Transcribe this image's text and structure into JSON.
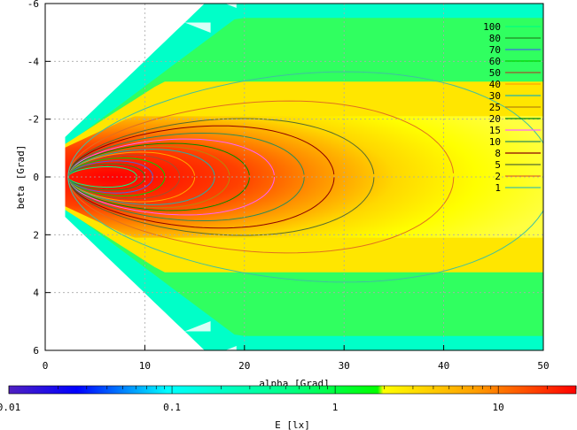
{
  "chart_data": {
    "type": "heatmap",
    "xlabel": "alpha [Grad]",
    "ylabel": "beta [Grad]",
    "xlim": [
      0,
      50
    ],
    "ylim": [
      -6,
      6
    ],
    "y_axis_inverted": true,
    "x_ticks": [
      "0",
      "10",
      "20",
      "30",
      "40",
      "50"
    ],
    "y_ticks": [
      "-6",
      "-4",
      "-2",
      "0",
      "2",
      "4",
      "6"
    ],
    "grid": true,
    "colorbar": {
      "label": "E [lx]",
      "scale": "log",
      "range": [
        0.01,
        30
      ],
      "ticks": [
        "0.01",
        "0.1",
        "1",
        "10"
      ]
    },
    "contour_levels": [
      {
        "level": "100",
        "color": "#00ff7f"
      },
      {
        "level": "80",
        "color": "#228b22"
      },
      {
        "level": "70",
        "color": "#4169e1"
      },
      {
        "level": "60",
        "color": "#00d000"
      },
      {
        "level": "50",
        "color": "#a0522d"
      },
      {
        "level": "40",
        "color": "#ffa500"
      },
      {
        "level": "30",
        "color": "#20b2aa"
      },
      {
        "level": "25",
        "color": "#b8860b"
      },
      {
        "level": "20",
        "color": "#008b00"
      },
      {
        "level": "15",
        "color": "#ff60ff"
      },
      {
        "level": "10",
        "color": "#2e8b57"
      },
      {
        "level": "8",
        "color": "#8b0000"
      },
      {
        "level": "5",
        "color": "#556b2f"
      },
      {
        "level": "2",
        "color": "#e07020"
      },
      {
        "level": "1",
        "color": "#40c0a0"
      }
    ],
    "peak": {
      "alpha": 5,
      "beta": 0
    }
  }
}
